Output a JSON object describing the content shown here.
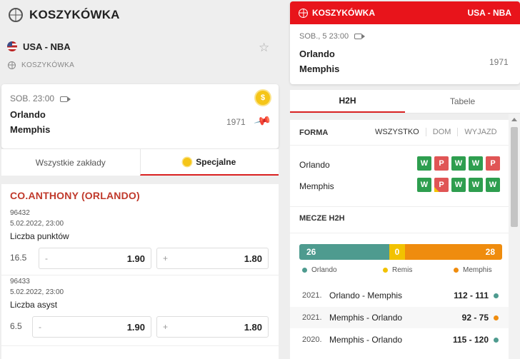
{
  "left": {
    "title": "KOSZYKÓWKA",
    "league": "USA - NBA",
    "sport": "KOSZYKÓWKA",
    "match": {
      "datetime": "SOB. 23:00",
      "team1": "Orlando",
      "team2": "Memphis",
      "number": "1971",
      "coin": "$"
    },
    "tabs": [
      "Wszystkie zakłady",
      "Specjalne"
    ],
    "player": "CO.ANTHONY (ORLANDO)",
    "markets": [
      {
        "id": "96432",
        "date": "5.02.2022, 23:00",
        "name": "Liczba punktów",
        "line": "16.5",
        "minus_sign": "-",
        "minus_odd": "1.90",
        "plus_sign": "+",
        "plus_odd": "1.80"
      },
      {
        "id": "96433",
        "date": "5.02.2022, 23:00",
        "name": "Liczba asyst",
        "line": "6.5",
        "minus_sign": "-",
        "minus_odd": "1.90",
        "plus_sign": "+",
        "plus_odd": "1.80"
      }
    ]
  },
  "right": {
    "bar_left": "KOSZYKÓWKA",
    "bar_right": "USA - NBA",
    "datetime": "SOB., 5  23:00",
    "team1": "Orlando",
    "team2": "Memphis",
    "number": "1971",
    "tabs": [
      "H2H",
      "Tabele"
    ],
    "forma": {
      "label": "FORMA",
      "filters": [
        "WSZYSTKO",
        "DOM",
        "WYJAZD"
      ],
      "rows": [
        {
          "team": "Orlando",
          "results": [
            "W",
            "P",
            "W",
            "W",
            "P"
          ]
        },
        {
          "team": "Memphis",
          "results": [
            "W",
            "P",
            "W",
            "W",
            "W"
          ]
        }
      ]
    },
    "h2h": {
      "label": "MECZE H2H",
      "wins_a": 26,
      "draws": 0,
      "wins_b": 28,
      "legend_a": "Orlando",
      "legend_d": "Remis",
      "legend_b": "Memphis",
      "colors": {
        "a": "#4e9b8f",
        "d": "#f2c200",
        "b": "#ef8c0e"
      },
      "matches": [
        {
          "year": "2021.",
          "match": "Orlando - Memphis",
          "score": "112 - 111",
          "winner": "a"
        },
        {
          "year": "2021.",
          "match": "Memphis - Orlando",
          "score": "92 - 75",
          "winner": "b"
        },
        {
          "year": "2020.",
          "match": "Memphis - Orlando",
          "score": "115 - 120",
          "winner": "a"
        }
      ]
    }
  }
}
